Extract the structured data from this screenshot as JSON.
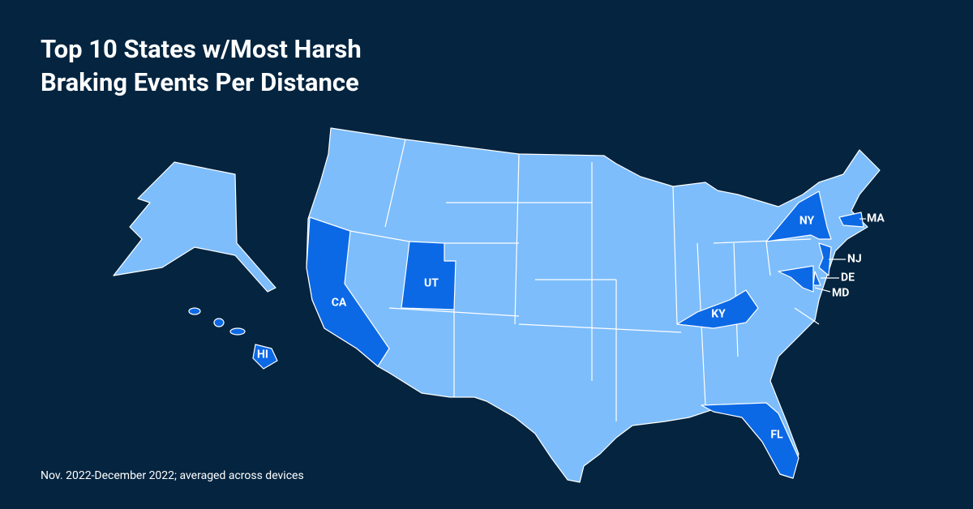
{
  "title": "Top 10 States w/Most Harsh Braking Events Per Distance",
  "footnote": "Nov. 2022-December 2022; averaged across devices",
  "highlighted_states": [
    {
      "label": "CA"
    },
    {
      "label": "UT"
    },
    {
      "label": "NY"
    },
    {
      "label": "MA"
    },
    {
      "label": "NJ"
    },
    {
      "label": "DE"
    },
    {
      "label": "MD"
    },
    {
      "label": "KY"
    },
    {
      "label": "FL"
    },
    {
      "label": "HI"
    }
  ]
}
